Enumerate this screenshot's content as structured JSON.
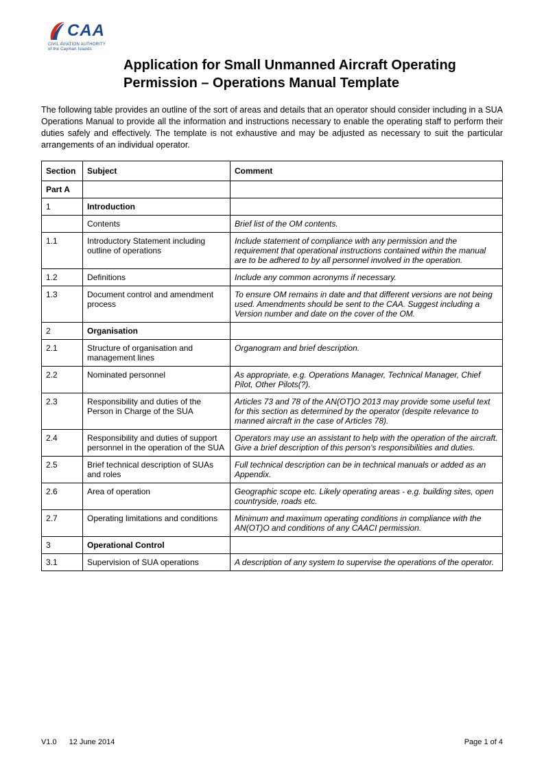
{
  "logo": {
    "text": "CAA",
    "sub1": "CIVIL AVIATION AUTHORITY",
    "sub2": "of the Cayman Islands",
    "swoosh_red": "#d52b1e",
    "swoosh_blue": "#1a4b8c"
  },
  "title": "Application for Small Unmanned Aircraft Operating Permission – Operations Manual Template",
  "intro": "The following table provides an outline of the sort of areas and details that an operator should consider including in a SUA Operations Manual to provide all the information and instructions necessary to enable the operating staff to perform their duties safely and effectively. The template is not exhaustive and may be adjusted as necessary to suit the particular arrangements of an individual operator.",
  "table": {
    "headers": {
      "section": "Section",
      "subject": "Subject",
      "comment": "Comment"
    },
    "rows": [
      {
        "section": "Part A",
        "subject": "",
        "comment": "",
        "section_bold": true
      },
      {
        "section": "1",
        "subject": "Introduction",
        "comment": "",
        "subject_bold": true
      },
      {
        "section": "",
        "subject": "Contents",
        "comment": "Brief list of the OM contents.",
        "comment_italic": true
      },
      {
        "section": "1.1",
        "subject": "Introductory Statement including outline of operations",
        "comment": "Include statement of compliance with any permission and the requirement that operational instructions contained within the manual are to be adhered to by all personnel involved in the operation.",
        "comment_italic": true
      },
      {
        "section": "1.2",
        "subject": "Definitions",
        "comment": "Include any common acronyms if necessary.",
        "comment_italic": true
      },
      {
        "section": "1.3",
        "subject": "Document control and amendment process",
        "comment": "To ensure OM remains in date and that different versions are not being used. Amendments should be sent to the CAA. Suggest including a Version number and date on the cover of the OM.",
        "comment_italic": true
      },
      {
        "section": "2",
        "subject": "Organisation",
        "comment": "",
        "subject_bold": true
      },
      {
        "section": "2.1",
        "subject": "Structure of organisation and management lines",
        "comment": "Organogram and brief description.",
        "comment_italic": true
      },
      {
        "section": "2.2",
        "subject": "Nominated personnel",
        "comment": "As appropriate, e.g. Operations  Manager, Technical Manager, Chief Pilot, Other Pilots(?).",
        "comment_italic": true
      },
      {
        "section": "2.3",
        "subject": "Responsibility and duties of the Person in Charge of the SUA",
        "comment": "Articles 73 and 78 of the AN(OT)O 2013 may provide some useful text for this section as determined by the operator (despite relevance to manned aircraft in the case of Articles 78).",
        "comment_italic": true
      },
      {
        "section": "2.4",
        "subject": "Responsibility and duties of support personnel in the operation of the SUA",
        "comment": "Operators may use an assistant to help with the operation of the aircraft. Give a brief description of this person's responsibilities and duties.",
        "comment_italic": true
      },
      {
        "section": "2.5",
        "subject": "Brief technical description of SUAs and roles",
        "comment": "Full technical description can be in technical manuals or added as an Appendix.",
        "comment_italic": true
      },
      {
        "section": "2.6",
        "subject": "Area of operation",
        "comment": "Geographic scope etc. Likely operating areas - e.g. building sites, open countryside, roads etc.",
        "comment_italic": true
      },
      {
        "section": "2.7",
        "subject": "Operating limitations and conditions",
        "comment": "Minimum and maximum operating conditions in compliance with the AN(OT)O and conditions of any CAACI permission.",
        "comment_italic": true
      },
      {
        "section": "3",
        "subject": "Operational Control",
        "comment": "",
        "subject_bold": true
      },
      {
        "section": "3.1",
        "subject": "Supervision of SUA operations",
        "comment": "A description of any system to supervise the operations of the operator.",
        "comment_italic": true
      }
    ]
  },
  "footer": {
    "version": "V1.0",
    "date": "12 June 2014",
    "page": "Page 1 of 4"
  }
}
